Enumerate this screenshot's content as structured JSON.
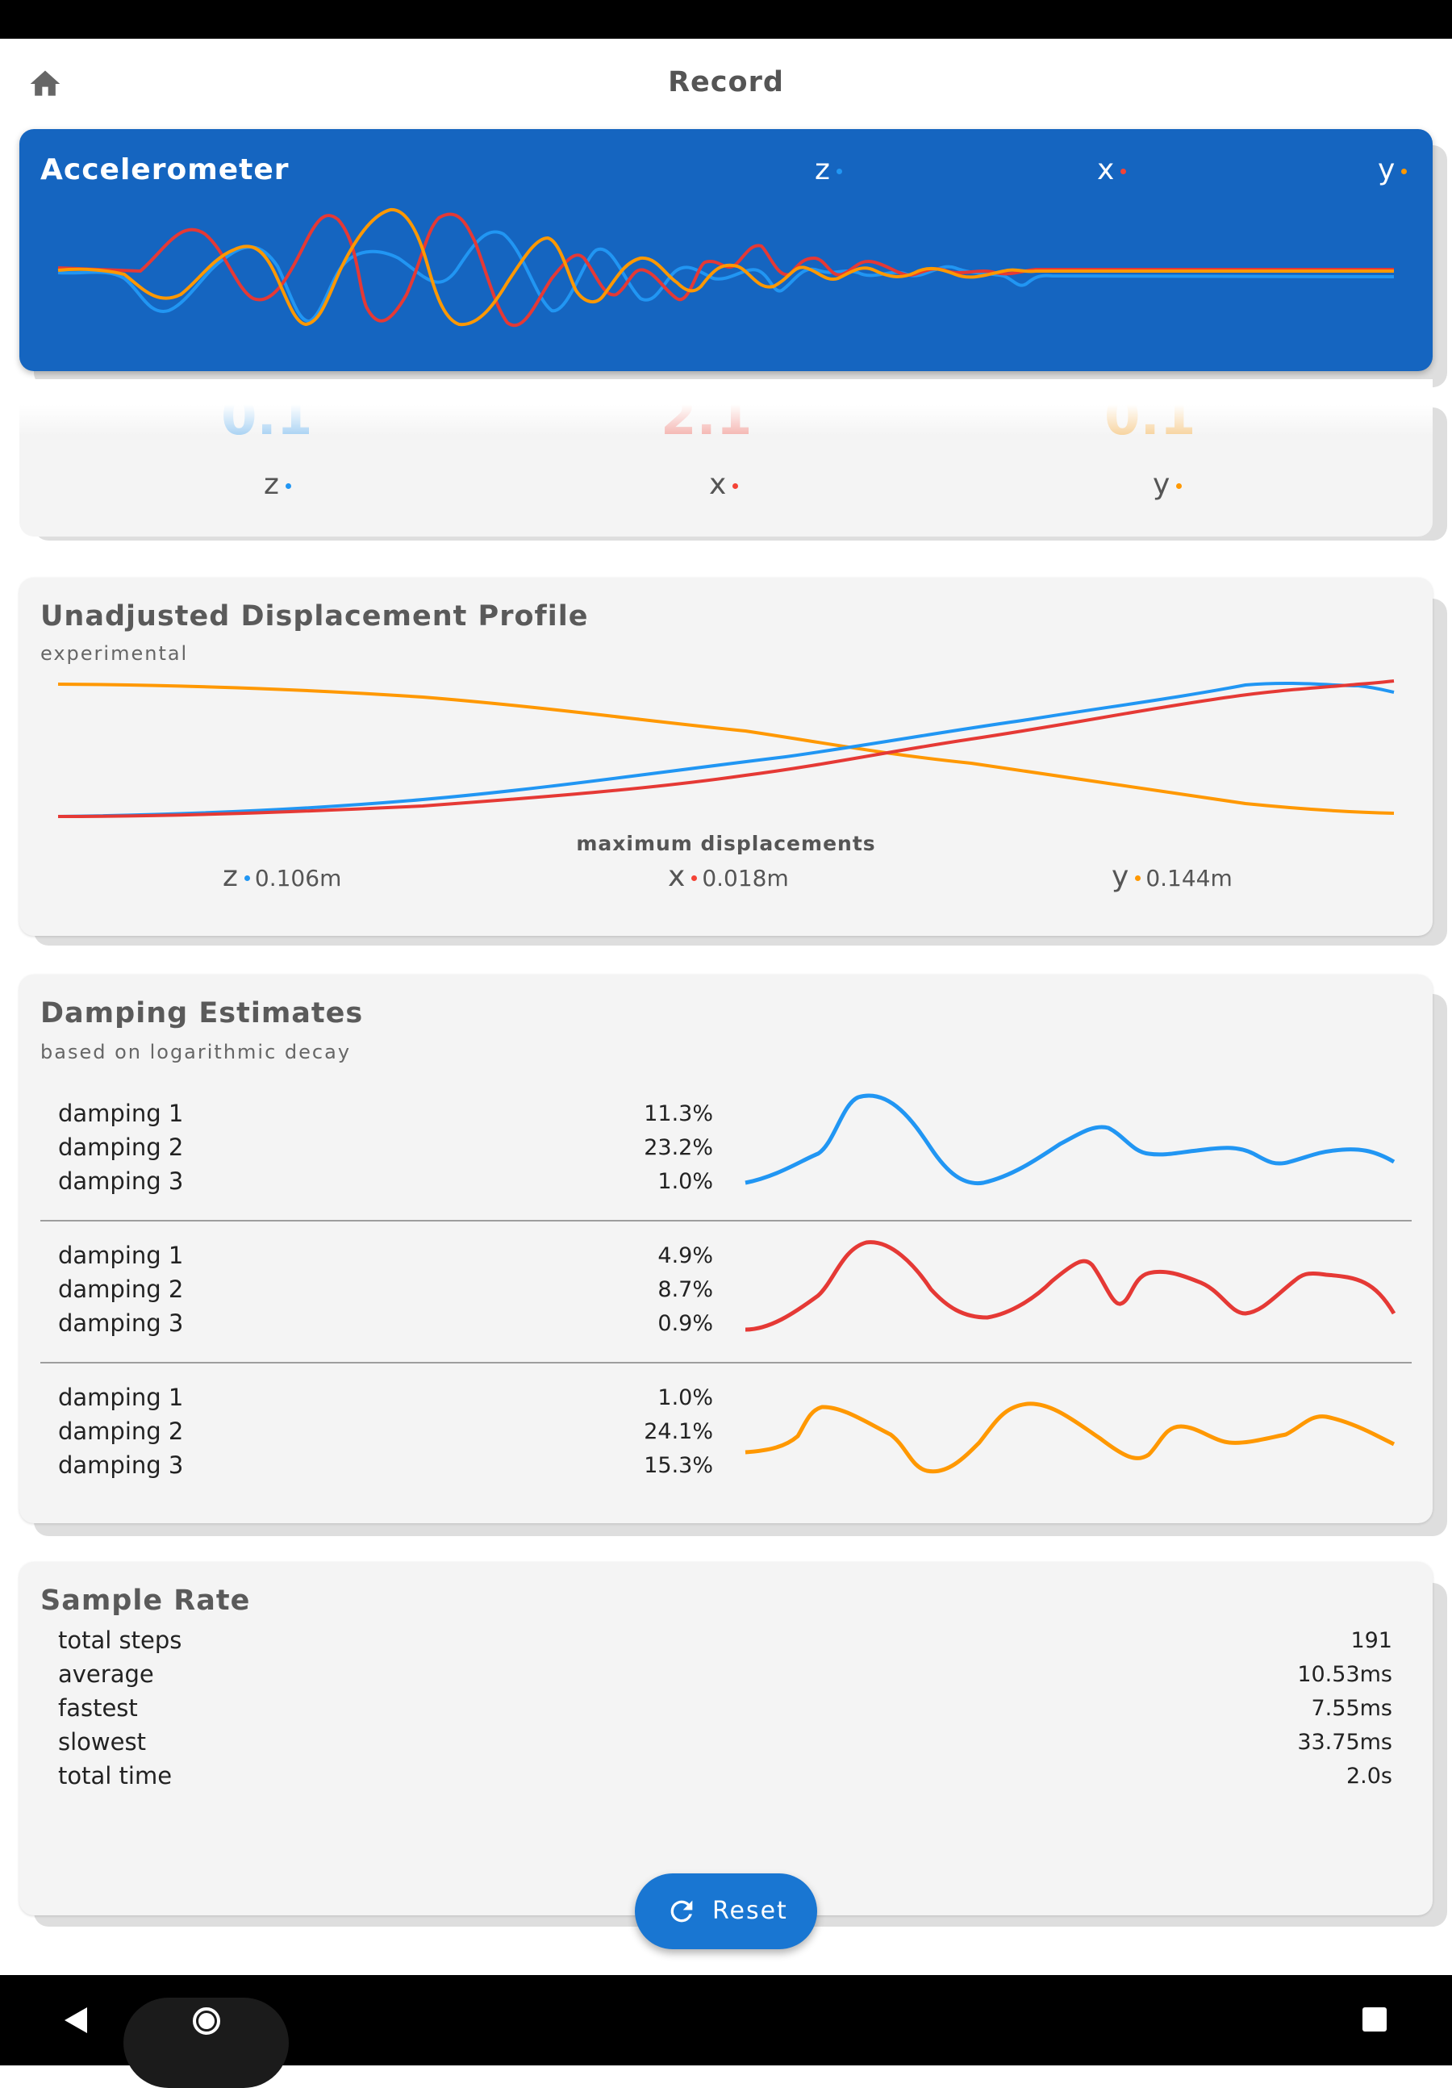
{
  "app_bar": {
    "title": "Record",
    "home_icon": "home-icon"
  },
  "colors": {
    "z": "#2196f3",
    "x": "#f44336",
    "y": "#ff9800",
    "accel_bg": "#1565c0"
  },
  "accelerometer": {
    "title": "Accelerometer",
    "legend": {
      "z": "z",
      "x": "x",
      "y": "y"
    }
  },
  "readout": {
    "values": {
      "z": "0.1",
      "x": "2.1",
      "y": "0.1"
    },
    "labels": {
      "z": "z",
      "x": "x",
      "y": "y"
    }
  },
  "displacement": {
    "title": "Unadjusted Displacement Profile",
    "subtitle": "experimental",
    "max_label": "maximum displacements",
    "items": [
      {
        "axis": "z",
        "value": "0.106m"
      },
      {
        "axis": "x",
        "value": "0.018m"
      },
      {
        "axis": "y",
        "value": "0.144m"
      }
    ]
  },
  "damping": {
    "title": "Damping Estimates",
    "subtitle": "based on logarithmic decay",
    "groups": [
      {
        "axis": "z",
        "rows": [
          {
            "label": "damping 1",
            "value": "11.3%"
          },
          {
            "label": "damping 2",
            "value": "23.2%"
          },
          {
            "label": "damping 3",
            "value": "1.0%"
          }
        ]
      },
      {
        "axis": "x",
        "rows": [
          {
            "label": "damping 1",
            "value": "4.9%"
          },
          {
            "label": "damping 2",
            "value": "8.7%"
          },
          {
            "label": "damping 3",
            "value": "0.9%"
          }
        ]
      },
      {
        "axis": "y",
        "rows": [
          {
            "label": "damping 1",
            "value": "1.0%"
          },
          {
            "label": "damping 2",
            "value": "24.1%"
          },
          {
            "label": "damping 3",
            "value": "15.3%"
          }
        ]
      }
    ]
  },
  "sample_rate": {
    "title": "Sample Rate",
    "rows": [
      {
        "label": "total steps",
        "value": "191"
      },
      {
        "label": "average",
        "value": "10.53ms"
      },
      {
        "label": "fastest",
        "value": "7.55ms"
      },
      {
        "label": "slowest",
        "value": "33.75ms"
      },
      {
        "label": "total time",
        "value": "2.0s"
      }
    ]
  },
  "reset_button": {
    "label": "Reset",
    "icon": "refresh-icon"
  },
  "nav": {
    "back_icon": "back-icon",
    "home_icon": "nav-home-icon",
    "recents_icon": "recents-icon"
  }
}
